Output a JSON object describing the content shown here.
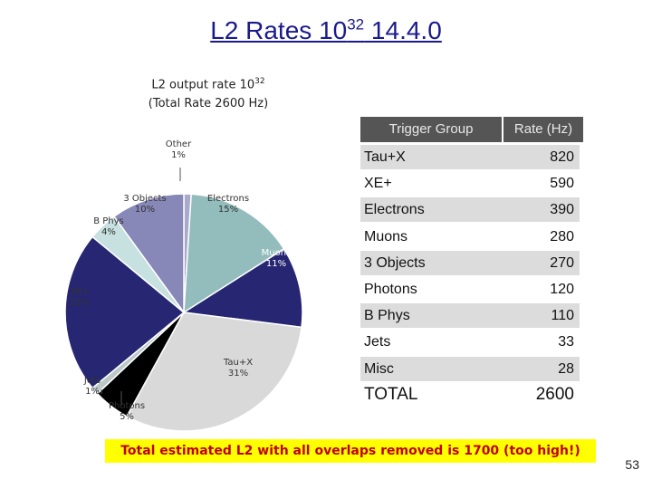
{
  "header": {
    "title_main": "L2 Rates 10",
    "title_sup": "32",
    "title_version": " 14.4.0"
  },
  "chart_data": {
    "type": "pie",
    "title_line1": "L2 output rate 10",
    "title_line1_sup": "32",
    "title_line2": "(Total Rate 2600 Hz)",
    "slices": [
      {
        "name": "Other",
        "pct_label": "1%",
        "value": 1,
        "color": "#a9a9cc"
      },
      {
        "name": "Electrons",
        "pct_label": "15%",
        "value": 15,
        "color": "#93bcbc"
      },
      {
        "name": "Muons",
        "pct_label": "11%",
        "value": 11,
        "color": "#262673"
      },
      {
        "name": "Tau+X",
        "pct_label": "31%",
        "value": 31,
        "color": "#d9d9d9"
      },
      {
        "name": "Photons",
        "pct_label": "5%",
        "value": 5,
        "color": "#000000"
      },
      {
        "name": "Jets",
        "pct_label": "1%",
        "value": 1,
        "color": "#bcc7c7"
      },
      {
        "name": "XE+",
        "pct_label": "22%",
        "value": 22,
        "color": "#262673"
      },
      {
        "name": "B Phys",
        "pct_label": "4%",
        "value": 4,
        "color": "#c7e0e0"
      },
      {
        "name": "3 Objects",
        "pct_label": "10%",
        "value": 10,
        "color": "#8787b8"
      }
    ]
  },
  "table": {
    "header_group": "Trigger Group",
    "header_rate": "Rate (Hz)",
    "rows": [
      {
        "group": "Tau+X",
        "rate": "820"
      },
      {
        "group": "XE+",
        "rate": "590"
      },
      {
        "group": "Electrons",
        "rate": "390"
      },
      {
        "group": "Muons",
        "rate": "280"
      },
      {
        "group": "3 Objects",
        "rate": "270"
      },
      {
        "group": "Photons",
        "rate": "120"
      },
      {
        "group": "B Phys",
        "rate": "110"
      },
      {
        "group": "Jets",
        "rate": "33"
      },
      {
        "group": "Misc",
        "rate": "28"
      }
    ],
    "total_label": "TOTAL",
    "total_value": "2600"
  },
  "footer": {
    "banner": "Total estimated L2 with all overlaps removed is  1700 (too high!)",
    "page_number": "53"
  }
}
